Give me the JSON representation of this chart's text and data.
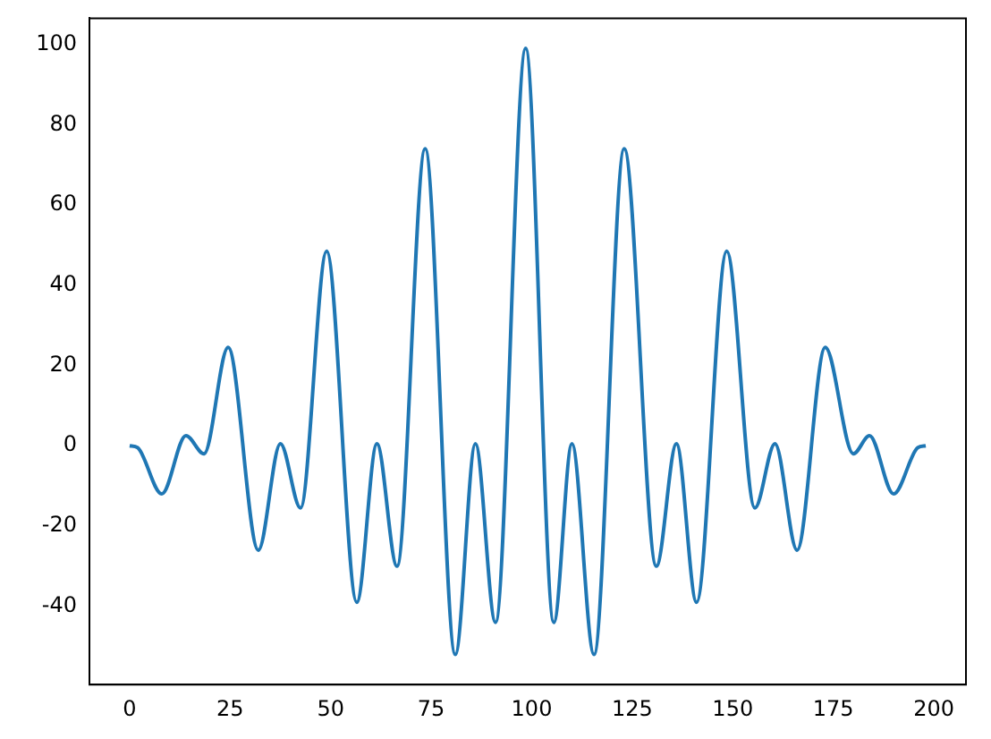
{
  "chart_data": {
    "type": "line",
    "x": [
      0,
      2,
      8,
      14,
      18.5,
      24.5,
      32,
      37.5,
      42.5,
      49,
      56.5,
      61.5,
      66.5,
      73.5,
      81,
      86,
      91,
      98.5,
      105.5,
      110,
      115.5,
      123,
      131,
      136,
      141,
      148.5,
      155.5,
      160.5,
      166,
      173,
      180,
      184,
      190,
      196,
      198
    ],
    "series": [
      {
        "color": "#1f77b4",
        "values": [
          0,
          -0.5,
          -12,
          2.5,
          -2,
          24.5,
          -26,
          0.5,
          -15.5,
          48.5,
          -39,
          0.5,
          -30,
          74,
          -52,
          0.5,
          -44,
          99,
          -44,
          0.5,
          -52,
          74,
          -30,
          0.5,
          -39,
          48.5,
          -15.5,
          0.5,
          -26,
          24.5,
          -2,
          2.5,
          -12,
          -0.5,
          0
        ]
      }
    ],
    "xlim": [
      -10,
      208
    ],
    "ylim": [
      -59.5,
      106.5
    ],
    "xticks": [
      0,
      25,
      50,
      75,
      100,
      125,
      150,
      175,
      200
    ],
    "yticks": [
      -40,
      -20,
      0,
      20,
      40,
      60,
      80,
      100
    ],
    "grid": false,
    "legend": false,
    "marker": "none",
    "line_style": "solid"
  }
}
